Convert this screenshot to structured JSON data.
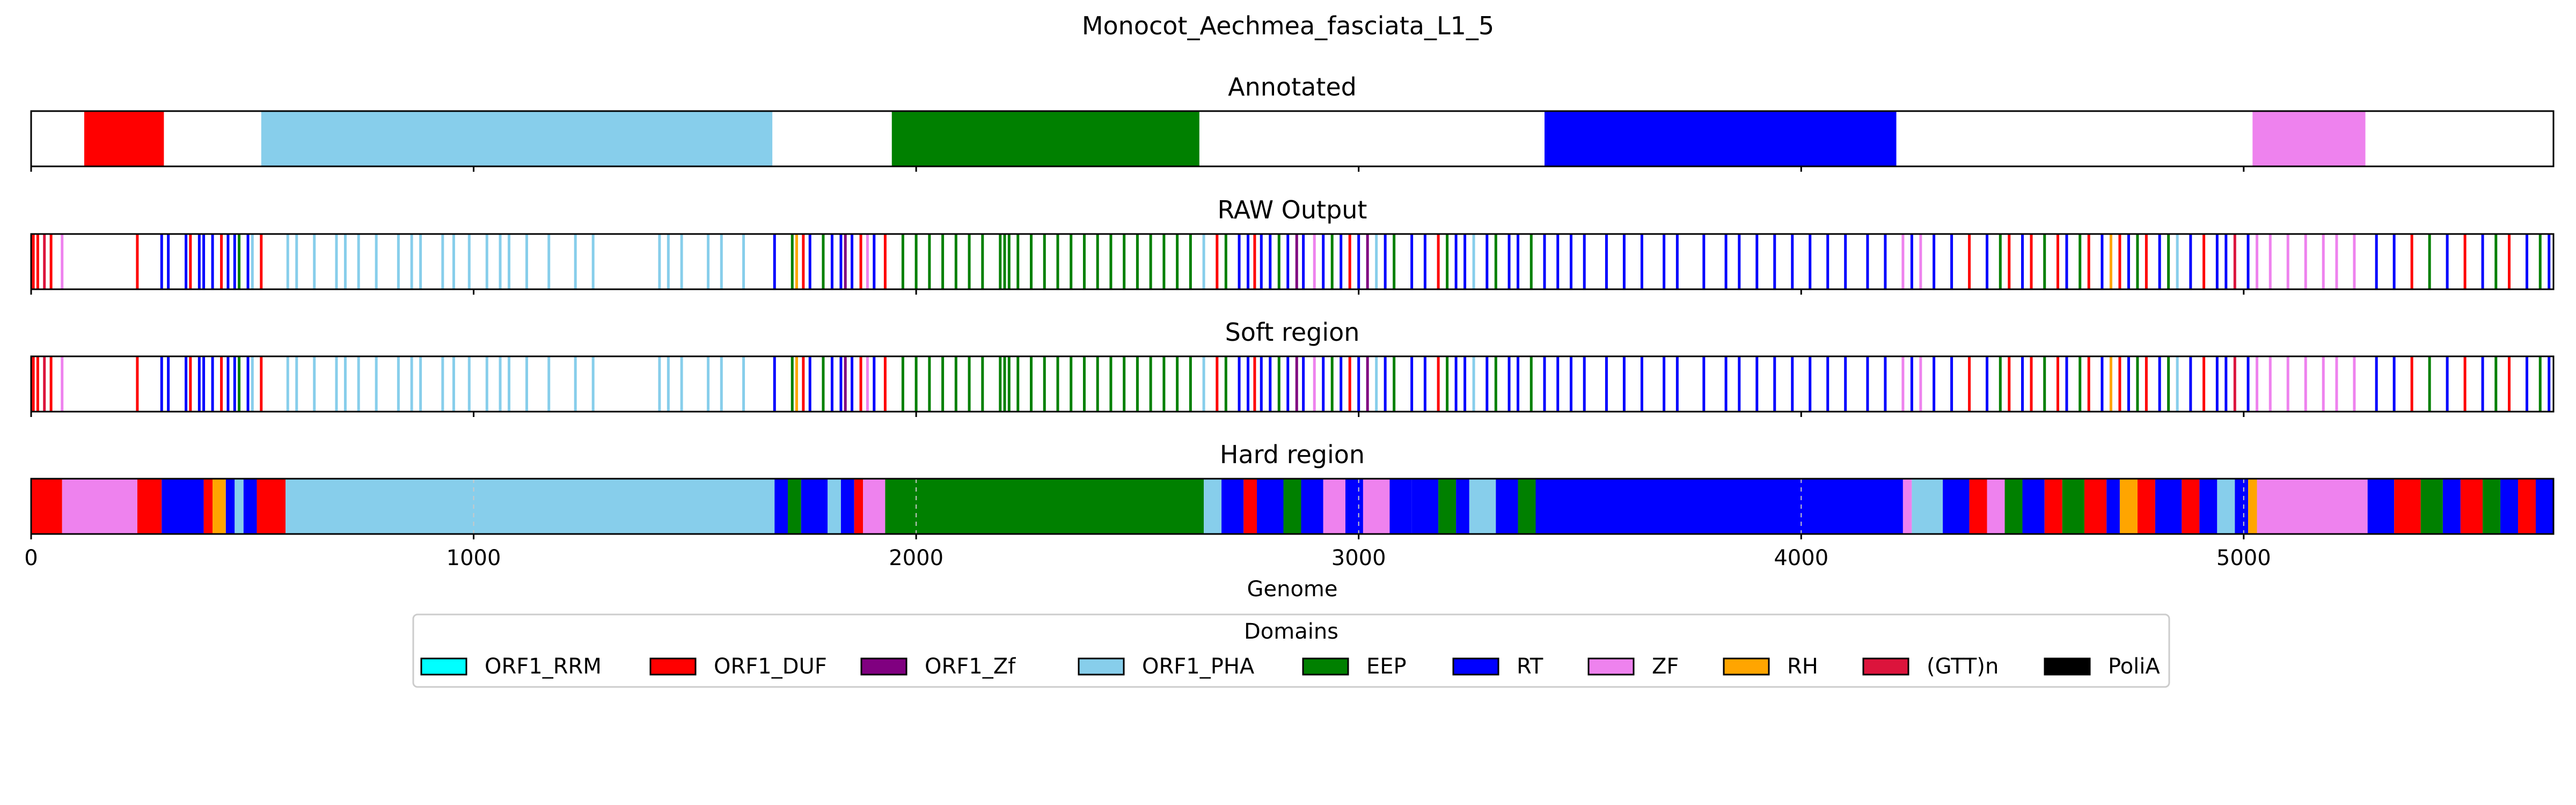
{
  "figure": {
    "title": "Monocot_Aechmea_fasciata_L1_5"
  },
  "chart_data": {
    "type": "bar",
    "orientation": "horizontal-tracks",
    "xlim": [
      0,
      5700
    ],
    "x_ticks": [
      0,
      1000,
      2000,
      3000,
      4000,
      5000
    ],
    "xlabel": "Genome",
    "grid": "dashed vertical lines on Hard region track",
    "colors": {
      "ORF1_RRM": "#00ffff",
      "ORF1_DUF": "#ff0000",
      "ORF1_Zf": "#800080",
      "ORF1_PHA": "#87ceeb",
      "EEP": "#008000",
      "RT": "#0000ff",
      "ZF": "#ee82ee",
      "RH": "#ffa500",
      "(GTT)n": "#dc143c",
      "PoliA": "#000000"
    },
    "tracks": [
      {
        "title": "Annotated",
        "kind": "segments",
        "segments": [
          [
            120,
            300,
            "ORF1_DUF"
          ],
          [
            520,
            1675,
            "ORF1_PHA"
          ],
          [
            1945,
            2640,
            "EEP"
          ],
          [
            3420,
            4215,
            "RT"
          ],
          [
            5020,
            5275,
            "ZF"
          ]
        ]
      },
      {
        "title": "RAW Output",
        "kind": "lines",
        "lines": [
          [
            5,
            "ORF1_DUF"
          ],
          [
            15,
            "ORF1_DUF"
          ],
          [
            30,
            "(GTT)n"
          ],
          [
            45,
            "ORF1_DUF"
          ],
          [
            70,
            "ZF"
          ],
          [
            240,
            "ORF1_DUF"
          ],
          [
            295,
            "RT"
          ],
          [
            310,
            "RT"
          ],
          [
            350,
            "RT"
          ],
          [
            360,
            "ORF1_DUF"
          ],
          [
            380,
            "RT"
          ],
          [
            390,
            "RT"
          ],
          [
            410,
            "RT"
          ],
          [
            430,
            "ORF1_DUF"
          ],
          [
            445,
            "RT"
          ],
          [
            460,
            "RT"
          ],
          [
            470,
            "EEP"
          ],
          [
            490,
            "RT"
          ],
          [
            500,
            "ORF1_PHA"
          ],
          [
            520,
            "ORF1_DUF"
          ],
          [
            580,
            "ORF1_PHA"
          ],
          [
            600,
            "ORF1_PHA"
          ],
          [
            640,
            "ORF1_PHA"
          ],
          [
            690,
            "ORF1_PHA"
          ],
          [
            710,
            "ORF1_PHA"
          ],
          [
            740,
            "ORF1_PHA"
          ],
          [
            780,
            "ORF1_PHA"
          ],
          [
            830,
            "ORF1_PHA"
          ],
          [
            860,
            "ORF1_PHA"
          ],
          [
            880,
            "ORF1_PHA"
          ],
          [
            930,
            "ORF1_PHA"
          ],
          [
            955,
            "ORF1_PHA"
          ],
          [
            990,
            "ORF1_PHA"
          ],
          [
            1030,
            "ORF1_PHA"
          ],
          [
            1060,
            "ORF1_PHA"
          ],
          [
            1080,
            "ORF1_PHA"
          ],
          [
            1120,
            "ORF1_PHA"
          ],
          [
            1170,
            "ORF1_PHA"
          ],
          [
            1230,
            "ORF1_PHA"
          ],
          [
            1270,
            "ORF1_PHA"
          ],
          [
            1420,
            "ORF1_PHA"
          ],
          [
            1440,
            "ORF1_PHA"
          ],
          [
            1470,
            "ORF1_PHA"
          ],
          [
            1530,
            "ORF1_PHA"
          ],
          [
            1560,
            "ORF1_PHA"
          ],
          [
            1610,
            "ORF1_PHA"
          ],
          [
            1680,
            "RT"
          ],
          [
            1720,
            "EEP"
          ],
          [
            1730,
            "RH"
          ],
          [
            1745,
            "ORF1_DUF"
          ],
          [
            1760,
            "RT"
          ],
          [
            1790,
            "EEP"
          ],
          [
            1810,
            "RT"
          ],
          [
            1830,
            "RT"
          ],
          [
            1840,
            "ORF1_Zf"
          ],
          [
            1855,
            "RT"
          ],
          [
            1875,
            "ORF1_DUF"
          ],
          [
            1890,
            "ZF"
          ],
          [
            1905,
            "RT"
          ],
          [
            1930,
            "ORF1_DUF"
          ],
          [
            1970,
            "EEP"
          ],
          [
            2000,
            "EEP"
          ],
          [
            2030,
            "EEP"
          ],
          [
            2060,
            "EEP"
          ],
          [
            2090,
            "EEP"
          ],
          [
            2120,
            "EEP"
          ],
          [
            2150,
            "EEP"
          ],
          [
            2190,
            "EEP"
          ],
          [
            2200,
            "EEP"
          ],
          [
            2210,
            "EEP"
          ],
          [
            2230,
            "EEP"
          ],
          [
            2260,
            "EEP"
          ],
          [
            2290,
            "EEP"
          ],
          [
            2320,
            "EEP"
          ],
          [
            2350,
            "EEP"
          ],
          [
            2380,
            "EEP"
          ],
          [
            2410,
            "EEP"
          ],
          [
            2440,
            "EEP"
          ],
          [
            2470,
            "EEP"
          ],
          [
            2500,
            "EEP"
          ],
          [
            2530,
            "EEP"
          ],
          [
            2560,
            "EEP"
          ],
          [
            2590,
            "EEP"
          ],
          [
            2620,
            "EEP"
          ],
          [
            2650,
            "ORF1_PHA"
          ],
          [
            2680,
            "ORF1_DUF"
          ],
          [
            2700,
            "EEP"
          ],
          [
            2730,
            "RT"
          ],
          [
            2750,
            "RT"
          ],
          [
            2765,
            "ORF1_DUF"
          ],
          [
            2780,
            "RT"
          ],
          [
            2800,
            "RT"
          ],
          [
            2820,
            "EEP"
          ],
          [
            2840,
            "RT"
          ],
          [
            2860,
            "ORF1_Zf"
          ],
          [
            2875,
            "RT"
          ],
          [
            2900,
            "ZF"
          ],
          [
            2920,
            "RT"
          ],
          [
            2940,
            "EEP"
          ],
          [
            2960,
            "RT"
          ],
          [
            2980,
            "ORF1_DUF"
          ],
          [
            3000,
            "RT"
          ],
          [
            3020,
            "ORF1_Zf"
          ],
          [
            3040,
            "ORF1_PHA"
          ],
          [
            3060,
            "RT"
          ],
          [
            3080,
            "EEP"
          ],
          [
            3120,
            "RT"
          ],
          [
            3150,
            "RT"
          ],
          [
            3180,
            "ORF1_DUF"
          ],
          [
            3200,
            "EEP"
          ],
          [
            3220,
            "RT"
          ],
          [
            3240,
            "RT"
          ],
          [
            3260,
            "ORF1_PHA"
          ],
          [
            3290,
            "RT"
          ],
          [
            3310,
            "EEP"
          ],
          [
            3340,
            "RT"
          ],
          [
            3360,
            "RT"
          ],
          [
            3390,
            "EEP"
          ],
          [
            3420,
            "RT"
          ],
          [
            3450,
            "RT"
          ],
          [
            3480,
            "RT"
          ],
          [
            3510,
            "RT"
          ],
          [
            3560,
            "RT"
          ],
          [
            3600,
            "RT"
          ],
          [
            3640,
            "RT"
          ],
          [
            3690,
            "RT"
          ],
          [
            3720,
            "RT"
          ],
          [
            3780,
            "RT"
          ],
          [
            3830,
            "RT"
          ],
          [
            3860,
            "RT"
          ],
          [
            3900,
            "RT"
          ],
          [
            3940,
            "RT"
          ],
          [
            3980,
            "RT"
          ],
          [
            4020,
            "RT"
          ],
          [
            4060,
            "RT"
          ],
          [
            4100,
            "RT"
          ],
          [
            4150,
            "RT"
          ],
          [
            4190,
            "RT"
          ],
          [
            4230,
            "ZF"
          ],
          [
            4250,
            "RT"
          ],
          [
            4270,
            "ZF"
          ],
          [
            4300,
            "RT"
          ],
          [
            4340,
            "RT"
          ],
          [
            4380,
            "ORF1_DUF"
          ],
          [
            4420,
            "RT"
          ],
          [
            4450,
            "EEP"
          ],
          [
            4470,
            "ORF1_DUF"
          ],
          [
            4500,
            "RT"
          ],
          [
            4520,
            "ORF1_DUF"
          ],
          [
            4550,
            "EEP"
          ],
          [
            4580,
            "ORF1_DUF"
          ],
          [
            4600,
            "RT"
          ],
          [
            4630,
            "EEP"
          ],
          [
            4650,
            "ORF1_DUF"
          ],
          [
            4680,
            "RT"
          ],
          [
            4700,
            "RH"
          ],
          [
            4720,
            "ORF1_DUF"
          ],
          [
            4740,
            "RT"
          ],
          [
            4760,
            "EEP"
          ],
          [
            4780,
            "ORF1_DUF"
          ],
          [
            4810,
            "RT"
          ],
          [
            4830,
            "EEP"
          ],
          [
            4850,
            "ORF1_PHA"
          ],
          [
            4880,
            "RT"
          ],
          [
            4910,
            "ORF1_DUF"
          ],
          [
            4940,
            "RT"
          ],
          [
            4960,
            "RT"
          ],
          [
            4980,
            "(GTT)n"
          ],
          [
            5010,
            "RT"
          ],
          [
            5030,
            "ZF"
          ],
          [
            5060,
            "ZF"
          ],
          [
            5100,
            "ZF"
          ],
          [
            5140,
            "ZF"
          ],
          [
            5180,
            "ZF"
          ],
          [
            5210,
            "ZF"
          ],
          [
            5250,
            "ZF"
          ],
          [
            5300,
            "RT"
          ],
          [
            5340,
            "RT"
          ],
          [
            5380,
            "ORF1_DUF"
          ],
          [
            5420,
            "EEP"
          ],
          [
            5460,
            "RT"
          ],
          [
            5500,
            "ORF1_DUF"
          ],
          [
            5540,
            "RT"
          ],
          [
            5570,
            "EEP"
          ],
          [
            5600,
            "ORF1_DUF"
          ],
          [
            5640,
            "RT"
          ],
          [
            5670,
            "EEP"
          ],
          [
            5690,
            "RT"
          ]
        ]
      },
      {
        "title": "Soft region",
        "kind": "lines",
        "same_as": "RAW Output"
      },
      {
        "title": "Hard region",
        "kind": "segments",
        "segments": [
          [
            0,
            70,
            "ORF1_DUF"
          ],
          [
            70,
            240,
            "ZF"
          ],
          [
            240,
            295,
            "ORF1_DUF"
          ],
          [
            295,
            390,
            "RT"
          ],
          [
            390,
            410,
            "ORF1_DUF"
          ],
          [
            410,
            440,
            "RH"
          ],
          [
            440,
            460,
            "RT"
          ],
          [
            460,
            480,
            "ORF1_PHA"
          ],
          [
            480,
            510,
            "RT"
          ],
          [
            510,
            575,
            "ORF1_DUF"
          ],
          [
            575,
            1680,
            "ORF1_PHA"
          ],
          [
            1680,
            1710,
            "RT"
          ],
          [
            1710,
            1740,
            "EEP"
          ],
          [
            1740,
            1800,
            "RT"
          ],
          [
            1800,
            1830,
            "ORF1_PHA"
          ],
          [
            1830,
            1860,
            "RT"
          ],
          [
            1860,
            1880,
            "ORF1_DUF"
          ],
          [
            1880,
            1930,
            "ZF"
          ],
          [
            1930,
            2650,
            "EEP"
          ],
          [
            2650,
            2690,
            "ORF1_PHA"
          ],
          [
            2690,
            2740,
            "RT"
          ],
          [
            2740,
            2770,
            "ORF1_DUF"
          ],
          [
            2770,
            2830,
            "RT"
          ],
          [
            2830,
            2870,
            "EEP"
          ],
          [
            2870,
            2920,
            "RT"
          ],
          [
            2920,
            2970,
            "ZF"
          ],
          [
            2970,
            3010,
            "RT"
          ],
          [
            3010,
            3070,
            "ZF"
          ],
          [
            3070,
            3120,
            "RT"
          ],
          [
            3120,
            3180,
            "RT"
          ],
          [
            3180,
            3220,
            "EEP"
          ],
          [
            3220,
            3250,
            "RT"
          ],
          [
            3250,
            3310,
            "ORF1_PHA"
          ],
          [
            3310,
            3360,
            "RT"
          ],
          [
            3360,
            3400,
            "EEP"
          ],
          [
            3400,
            4230,
            "RT"
          ],
          [
            4230,
            4250,
            "ZF"
          ],
          [
            4250,
            4320,
            "ORF1_PHA"
          ],
          [
            4320,
            4380,
            "RT"
          ],
          [
            4380,
            4420,
            "ORF1_DUF"
          ],
          [
            4420,
            4460,
            "ZF"
          ],
          [
            4460,
            4500,
            "EEP"
          ],
          [
            4500,
            4550,
            "RT"
          ],
          [
            4550,
            4590,
            "ORF1_DUF"
          ],
          [
            4590,
            4640,
            "EEP"
          ],
          [
            4640,
            4690,
            "ORF1_DUF"
          ],
          [
            4690,
            4720,
            "RT"
          ],
          [
            4720,
            4760,
            "RH"
          ],
          [
            4760,
            4800,
            "ORF1_DUF"
          ],
          [
            4800,
            4860,
            "RT"
          ],
          [
            4860,
            4900,
            "ORF1_DUF"
          ],
          [
            4900,
            4940,
            "RT"
          ],
          [
            4940,
            4980,
            "ORF1_PHA"
          ],
          [
            4980,
            5010,
            "RT"
          ],
          [
            5010,
            5030,
            "RH"
          ],
          [
            5030,
            5280,
            "ZF"
          ],
          [
            5280,
            5340,
            "RT"
          ],
          [
            5340,
            5400,
            "ORF1_DUF"
          ],
          [
            5400,
            5450,
            "EEP"
          ],
          [
            5450,
            5490,
            "RT"
          ],
          [
            5490,
            5540,
            "ORF1_DUF"
          ],
          [
            5540,
            5580,
            "EEP"
          ],
          [
            5580,
            5620,
            "RT"
          ],
          [
            5620,
            5660,
            "ORF1_DUF"
          ],
          [
            5660,
            5700,
            "RT"
          ]
        ]
      }
    ],
    "legend": {
      "title": "Domains",
      "placement": "bottom-center",
      "entries": [
        "ORF1_RRM",
        "ORF1_DUF",
        "ORF1_Zf",
        "ORF1_PHA",
        "EEP",
        "RT",
        "ZF",
        "RH",
        "(GTT)n",
        "PoliA"
      ]
    }
  }
}
